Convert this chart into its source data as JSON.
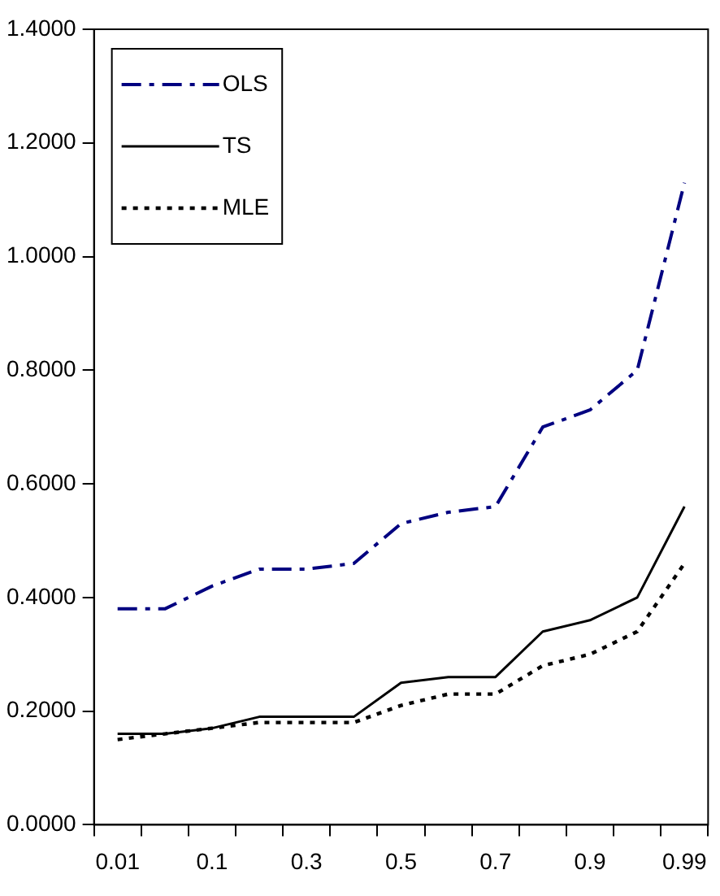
{
  "chart_data": {
    "type": "line",
    "categories": [
      "0.01",
      null,
      "0.1",
      null,
      "0.3",
      null,
      "0.5",
      null,
      "0.7",
      null,
      "0.9",
      null,
      "0.99"
    ],
    "series": [
      {
        "name": "OLS",
        "color": "#000080",
        "line_style": "dashed",
        "values": [
          0.38,
          0.38,
          0.42,
          0.45,
          0.45,
          0.46,
          0.53,
          0.55,
          0.56,
          0.7,
          0.73,
          0.8,
          1.13
        ]
      },
      {
        "name": "TS",
        "color": "#000000",
        "line_style": "solid",
        "values": [
          0.16,
          0.16,
          0.17,
          0.19,
          0.19,
          0.19,
          0.25,
          0.26,
          0.26,
          0.34,
          0.36,
          0.4,
          0.56
        ]
      },
      {
        "name": "MLE",
        "color": "#000000",
        "line_style": "dotted",
        "values": [
          0.15,
          0.16,
          0.17,
          0.18,
          0.18,
          0.18,
          0.21,
          0.23,
          0.23,
          0.28,
          0.3,
          0.34,
          0.46
        ]
      }
    ],
    "ylim": [
      0,
      1.4
    ],
    "yticks": [
      {
        "value": 0,
        "label": "0.0000"
      },
      {
        "value": 0.2,
        "label": "0.2000"
      },
      {
        "value": 0.4,
        "label": "0.4000"
      },
      {
        "value": 0.6,
        "label": "0.6000"
      },
      {
        "value": 0.8,
        "label": "0.8000"
      },
      {
        "value": 1.0,
        "label": "1.0000"
      },
      {
        "value": 1.2,
        "label": "1.2000"
      },
      {
        "value": 1.4,
        "label": "1.4000"
      }
    ],
    "grid": false,
    "legend": "top left",
    "marker": "none"
  }
}
